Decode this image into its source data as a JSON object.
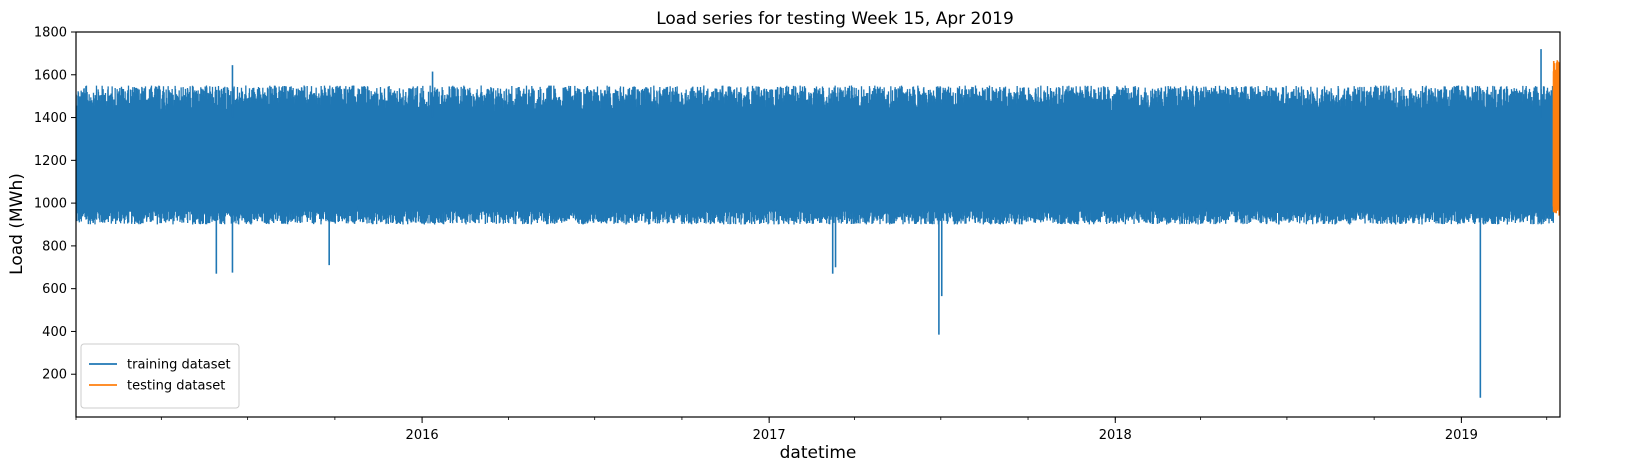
{
  "chart_data": {
    "type": "line",
    "title": "Load series for testing Week 15, Apr 2019",
    "xlabel": "datetime",
    "ylabel": "Load (MWh)",
    "xlim": [
      "2015-01-01",
      "2019-04-15"
    ],
    "ylim": [
      0,
      1800
    ],
    "yticks": [
      200,
      400,
      600,
      800,
      1000,
      1200,
      1400,
      1600,
      1800
    ],
    "xticks": [
      {
        "date": "2016-01-01",
        "label": "2016"
      },
      {
        "date": "2017-01-01",
        "label": "2017"
      },
      {
        "date": "2018-01-01",
        "label": "2018"
      },
      {
        "date": "2019-01-01",
        "label": "2019"
      }
    ],
    "grid": false,
    "legend": {
      "position": "lower-left"
    },
    "series": [
      {
        "name": "training dataset",
        "color": "#1f77b4",
        "range": [
          "2015-01-01",
          "2019-04-08"
        ],
        "typical_min": 900,
        "typical_max": 1550,
        "notable_points": [
          {
            "date": "2015-06-15",
            "value": 1645
          },
          {
            "date": "2015-05-29",
            "value": 670
          },
          {
            "date": "2015-06-15",
            "value": 675
          },
          {
            "date": "2015-09-25",
            "value": 710
          },
          {
            "date": "2016-01-12",
            "value": 1615
          },
          {
            "date": "2017-03-09",
            "value": 670
          },
          {
            "date": "2017-03-12",
            "value": 700
          },
          {
            "date": "2017-06-29",
            "value": 385
          },
          {
            "date": "2017-07-02",
            "value": 565
          },
          {
            "date": "2019-01-21",
            "value": 90
          },
          {
            "date": "2019-03-26",
            "value": 1720
          }
        ]
      },
      {
        "name": "testing dataset",
        "color": "#ff7f0e",
        "range": [
          "2019-04-08",
          "2019-04-15"
        ],
        "typical_min": 940,
        "typical_max": 1670
      }
    ]
  }
}
